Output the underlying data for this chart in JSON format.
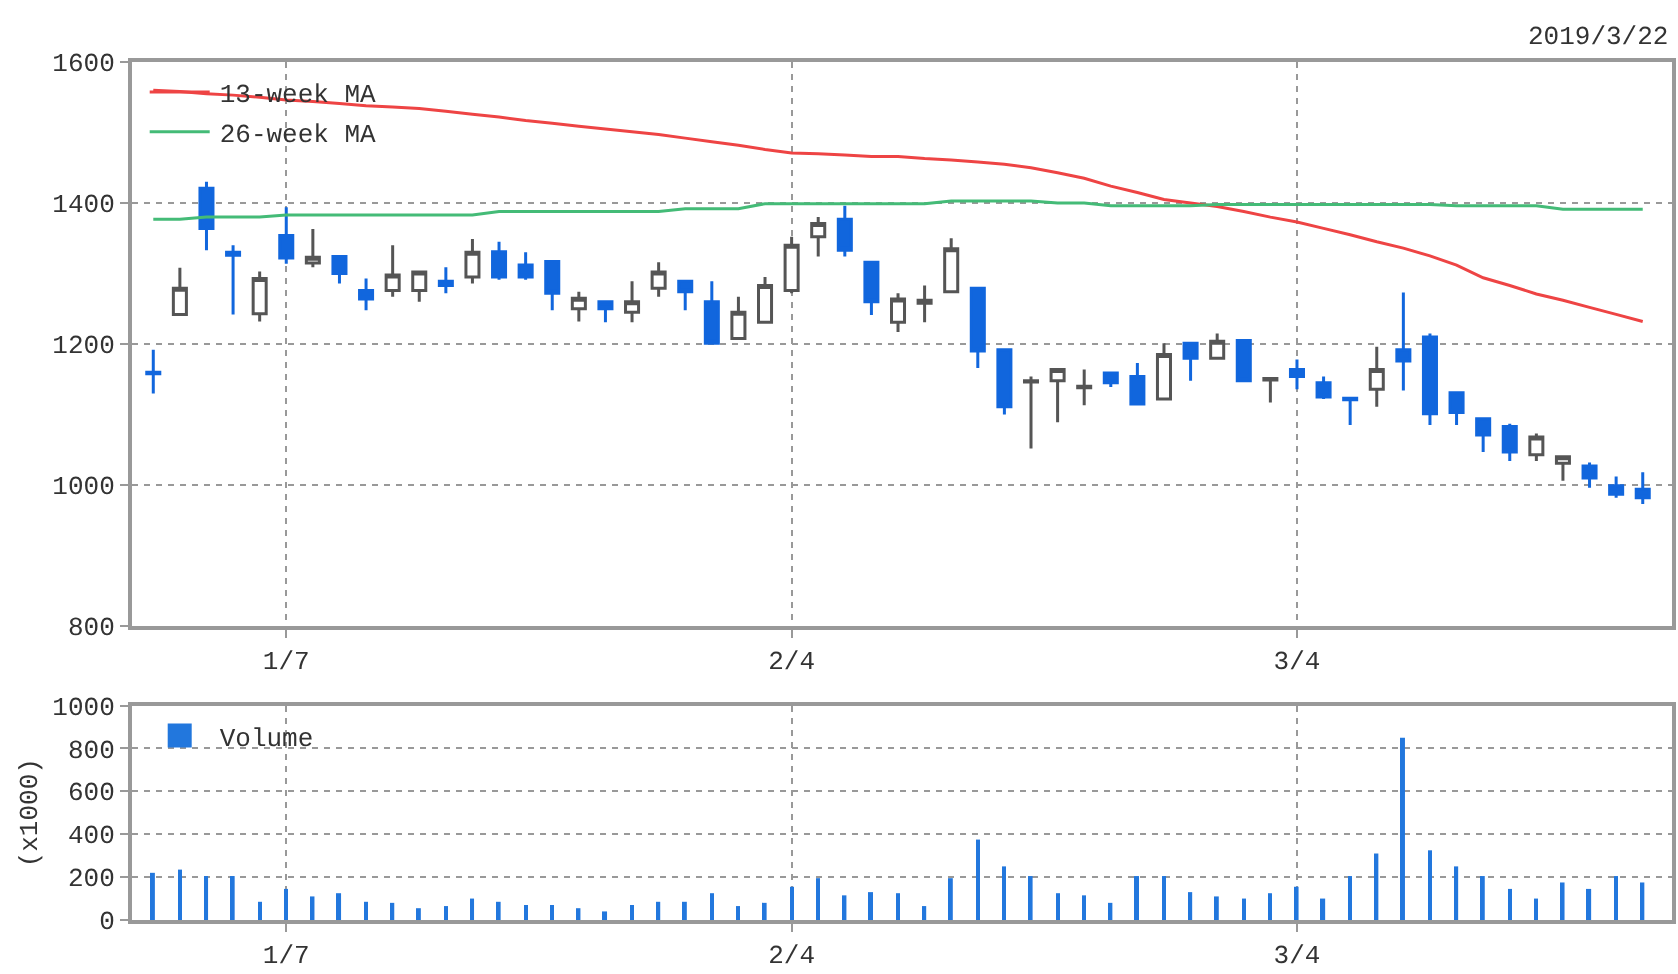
{
  "chart_data": [
    {
      "type": "candlestick",
      "categories": [
        null,
        null,
        null,
        null,
        null,
        "1/7",
        null,
        null,
        null,
        null,
        null,
        null,
        null,
        null,
        null,
        null,
        null,
        null,
        null,
        null,
        null,
        null,
        null,
        null,
        "2/4",
        null,
        null,
        null,
        null,
        null,
        null,
        null,
        null,
        null,
        null,
        null,
        null,
        null,
        null,
        null,
        null,
        null,
        null,
        "3/4",
        null,
        null,
        null,
        null,
        null,
        null,
        null,
        null,
        null,
        null,
        null,
        null,
        null
      ],
      "ohlc": [
        [
          1160,
          1192,
          1130,
          1158
        ],
        [
          1242,
          1308,
          1240,
          1279
        ],
        [
          1421,
          1430,
          1333,
          1364
        ],
        [
          1330,
          1340,
          1242,
          1326
        ],
        [
          1243,
          1303,
          1232,
          1293
        ],
        [
          1354,
          1394,
          1314,
          1322
        ],
        [
          1315,
          1363,
          1309,
          1323
        ],
        [
          1324,
          1326,
          1286,
          1300
        ],
        [
          1276,
          1293,
          1248,
          1264
        ],
        [
          1276,
          1340,
          1267,
          1298
        ],
        [
          1276,
          1303,
          1260,
          1302
        ],
        [
          1289,
          1309,
          1272,
          1283
        ],
        [
          1295,
          1349,
          1286,
          1330
        ],
        [
          1331,
          1345,
          1291,
          1295
        ],
        [
          1312,
          1330,
          1291,
          1295
        ],
        [
          1317,
          1318,
          1248,
          1272
        ],
        [
          1250,
          1274,
          1232,
          1265
        ],
        [
          1260,
          1261,
          1231,
          1250
        ],
        [
          1245,
          1289,
          1231,
          1260
        ],
        [
          1279,
          1316,
          1267,
          1302
        ],
        [
          1289,
          1290,
          1248,
          1274
        ],
        [
          1260,
          1289,
          1199,
          1201
        ],
        [
          1208,
          1267,
          1206,
          1245
        ],
        [
          1231,
          1295,
          1230,
          1283
        ],
        [
          1276,
          1352,
          1272,
          1340
        ],
        [
          1352,
          1380,
          1324,
          1371
        ],
        [
          1377,
          1396,
          1324,
          1333
        ],
        [
          1316,
          1317,
          1241,
          1260
        ],
        [
          1231,
          1272,
          1217,
          1264
        ],
        [
          1258,
          1283,
          1231,
          1262
        ],
        [
          1274,
          1350,
          1272,
          1335
        ],
        [
          1279,
          1280,
          1166,
          1190
        ],
        [
          1192,
          1193,
          1100,
          1111
        ],
        [
          1146,
          1154,
          1052,
          1148
        ],
        [
          1148,
          1166,
          1089,
          1164
        ],
        [
          1138,
          1164,
          1113,
          1140
        ],
        [
          1159,
          1160,
          1139,
          1145
        ],
        [
          1154,
          1173,
          1113,
          1115
        ],
        [
          1122,
          1201,
          1120,
          1185
        ],
        [
          1201,
          1202,
          1148,
          1180
        ],
        [
          1180,
          1215,
          1178,
          1204
        ],
        [
          1205,
          1206,
          1147,
          1148
        ],
        [
          1149,
          1152,
          1117,
          1151
        ],
        [
          1164,
          1178,
          1136,
          1154
        ],
        [
          1145,
          1154,
          1122,
          1125
        ],
        [
          1123,
          1125,
          1085,
          1121
        ],
        [
          1136,
          1196,
          1111,
          1164
        ],
        [
          1192,
          1273,
          1134,
          1176
        ],
        [
          1210,
          1215,
          1085,
          1101
        ],
        [
          1131,
          1132,
          1085,
          1103
        ],
        [
          1094,
          1095,
          1047,
          1071
        ],
        [
          1083,
          1087,
          1034,
          1047
        ],
        [
          1043,
          1073,
          1034,
          1068
        ],
        [
          1031,
          1041,
          1006,
          1040
        ],
        [
          1027,
          1032,
          996,
          1010
        ],
        [
          999,
          1012,
          982,
          987
        ],
        [
          994,
          1018,
          973,
          982
        ]
      ],
      "colors": [
        "#1166dd",
        "#555555",
        "#1166dd",
        "#1166dd",
        "#555555",
        "#1166dd",
        "#555555",
        "#1166dd",
        "#1166dd",
        "#555555",
        "#555555",
        "#1166dd",
        "#555555",
        "#1166dd",
        "#1166dd",
        "#1166dd",
        "#555555",
        "#1166dd",
        "#555555",
        "#555555",
        "#1166dd",
        "#1166dd",
        "#555555",
        "#555555",
        "#555555",
        "#555555",
        "#1166dd",
        "#1166dd",
        "#555555",
        "#555555",
        "#555555",
        "#1166dd",
        "#1166dd",
        "#555555",
        "#555555",
        "#555555",
        "#1166dd",
        "#1166dd",
        "#555555",
        "#1166dd",
        "#555555",
        "#1166dd",
        "#555555",
        "#1166dd",
        "#1166dd",
        "#1166dd",
        "#555555",
        "#1166dd",
        "#1166dd",
        "#1166dd",
        "#1166dd",
        "#1166dd",
        "#555555",
        "#555555",
        "#1166dd",
        "#1166dd",
        "#1166dd"
      ],
      "series": [
        {
          "type": "line",
          "name": "13-week MA",
          "color": "#ee4444",
          "values": [
            1560,
            1558,
            1555,
            1553,
            1550,
            1546,
            1544,
            1541,
            1538,
            1536,
            1534,
            1530,
            1526,
            1522,
            1517,
            1513,
            1509,
            1505,
            1501,
            1497,
            1492,
            1487,
            1482,
            1476,
            1471,
            1470,
            1468,
            1466,
            1466,
            1463,
            1461,
            1458,
            1455,
            1450,
            1443,
            1435,
            1424,
            1415,
            1405,
            1400,
            1395,
            1388,
            1380,
            1373,
            1364,
            1355,
            1345,
            1336,
            1325,
            1312,
            1294,
            1283,
            1271,
            1262,
            1252,
            1242,
            1232
          ]
        },
        {
          "type": "line",
          "name": "26-week MA",
          "color": "#44bb77",
          "values": [
            1377,
            1377,
            1380,
            1380,
            1380,
            1383,
            1383,
            1383,
            1383,
            1383,
            1383,
            1383,
            1383,
            1388,
            1388,
            1388,
            1388,
            1388,
            1388,
            1388,
            1392,
            1392,
            1392,
            1399,
            1399,
            1399,
            1399,
            1399,
            1399,
            1399,
            1403,
            1403,
            1403,
            1403,
            1400,
            1400,
            1396,
            1396,
            1396,
            1396,
            1398,
            1398,
            1398,
            1398,
            1398,
            1398,
            1398,
            1398,
            1398,
            1396,
            1396,
            1396,
            1396,
            1391,
            1391,
            1391,
            1391
          ]
        }
      ],
      "ylim": [
        800,
        1600
      ],
      "yticks": [
        800,
        1000,
        1200,
        1400,
        1600
      ],
      "grid": true,
      "legend": "top left",
      "line_style": "solid",
      "marker": "none",
      "annotations": [
        "2019/3/22"
      ]
    },
    {
      "type": "bar",
      "categories": [
        null,
        null,
        null,
        null,
        null,
        "1/7",
        null,
        null,
        null,
        null,
        null,
        null,
        null,
        null,
        null,
        null,
        null,
        null,
        null,
        null,
        null,
        null,
        null,
        null,
        "2/4",
        null,
        null,
        null,
        null,
        null,
        null,
        null,
        null,
        null,
        null,
        null,
        null,
        null,
        null,
        null,
        null,
        null,
        null,
        "3/4",
        null,
        null,
        null,
        null,
        null,
        null,
        null,
        null,
        null,
        null,
        null,
        null,
        null
      ],
      "series": [
        {
          "name": "Volume",
          "color": "#2277dd",
          "values": [
            220,
            235,
            205,
            205,
            85,
            145,
            110,
            125,
            85,
            80,
            55,
            65,
            100,
            85,
            70,
            70,
            55,
            40,
            70,
            85,
            85,
            125,
            65,
            80,
            155,
            195,
            115,
            130,
            125,
            65,
            195,
            375,
            250,
            205,
            125,
            115,
            80,
            205,
            205,
            130,
            110,
            100,
            125,
            155,
            100,
            205,
            310,
            850,
            325,
            250,
            205,
            145,
            100,
            175,
            145,
            205,
            175
          ]
        }
      ],
      "ylabel": "(x1000)",
      "ylim": [
        0,
        1000
      ],
      "yticks": [
        0,
        200,
        400,
        600,
        800,
        1000
      ],
      "grid": true,
      "legend": "top left"
    }
  ]
}
